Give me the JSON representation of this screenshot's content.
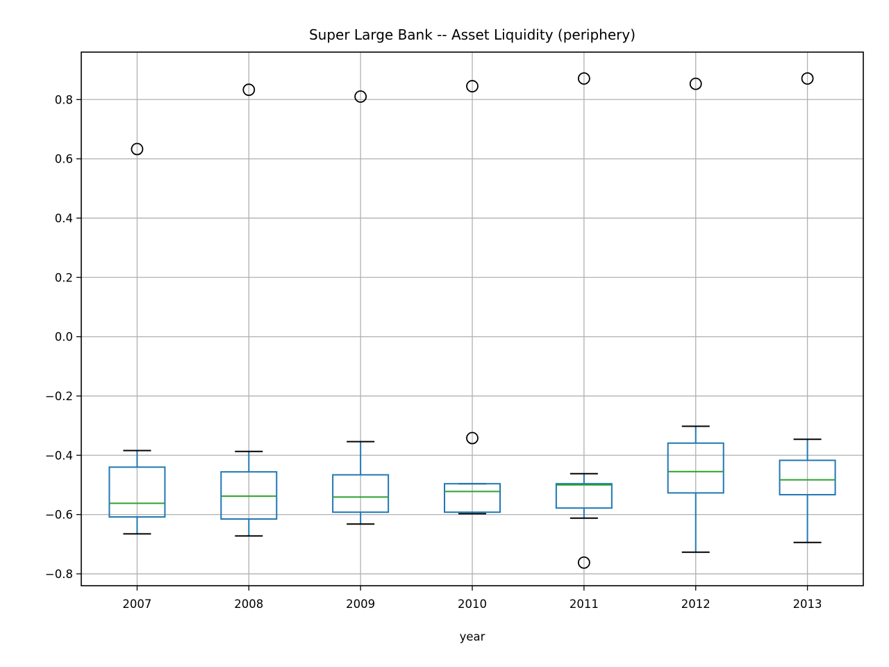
{
  "chart_data": {
    "type": "box",
    "title": "Super Large Bank -- Asset Liquidity (periphery)",
    "xlabel": "year",
    "ylabel": "",
    "categories": [
      "2007",
      "2008",
      "2009",
      "2010",
      "2011",
      "2012",
      "2013"
    ],
    "ylim": [
      -0.84,
      0.96
    ],
    "yticks": [
      0.8,
      0.6,
      0.4,
      0.2,
      0.0,
      -0.2,
      -0.4,
      -0.6,
      -0.8
    ],
    "ytick_labels": [
      "0.8",
      "0.6",
      "0.4",
      "0.2",
      "0.0",
      "−0.2",
      "−0.4",
      "−0.6",
      "−0.8"
    ],
    "grid": true,
    "boxes": [
      {
        "category": "2007",
        "whisker_low": -0.665,
        "q1": -0.608,
        "median": -0.562,
        "q3": -0.44,
        "whisker_high": -0.384,
        "outliers": [
          0.633
        ]
      },
      {
        "category": "2008",
        "whisker_low": -0.672,
        "q1": -0.615,
        "median": -0.538,
        "q3": -0.456,
        "whisker_high": -0.387,
        "outliers": [
          0.833
        ]
      },
      {
        "category": "2009",
        "whisker_low": -0.632,
        "q1": -0.592,
        "median": -0.541,
        "q3": -0.466,
        "whisker_high": -0.354,
        "outliers": [
          0.81
        ]
      },
      {
        "category": "2010",
        "whisker_low": -0.597,
        "q1": -0.592,
        "median": -0.522,
        "q3": -0.496,
        "whisker_high": -0.496,
        "outliers": [
          0.845,
          -0.342
        ]
      },
      {
        "category": "2011",
        "whisker_low": -0.612,
        "q1": -0.578,
        "median": -0.5,
        "q3": -0.496,
        "whisker_high": -0.462,
        "outliers": [
          0.871,
          -0.762
        ]
      },
      {
        "category": "2012",
        "whisker_low": -0.727,
        "q1": -0.527,
        "median": -0.455,
        "q3": -0.359,
        "whisker_high": -0.302,
        "outliers": [
          0.853
        ]
      },
      {
        "category": "2013",
        "whisker_low": -0.694,
        "q1": -0.533,
        "median": -0.483,
        "q3": -0.417,
        "whisker_high": -0.346,
        "outliers": [
          0.871
        ]
      }
    ],
    "colors": {
      "box": "#1f77b4",
      "median": "#2ca02c",
      "whisker_cap": "#000000",
      "outlier": "#000000",
      "grid": "#b0b0b0"
    }
  }
}
